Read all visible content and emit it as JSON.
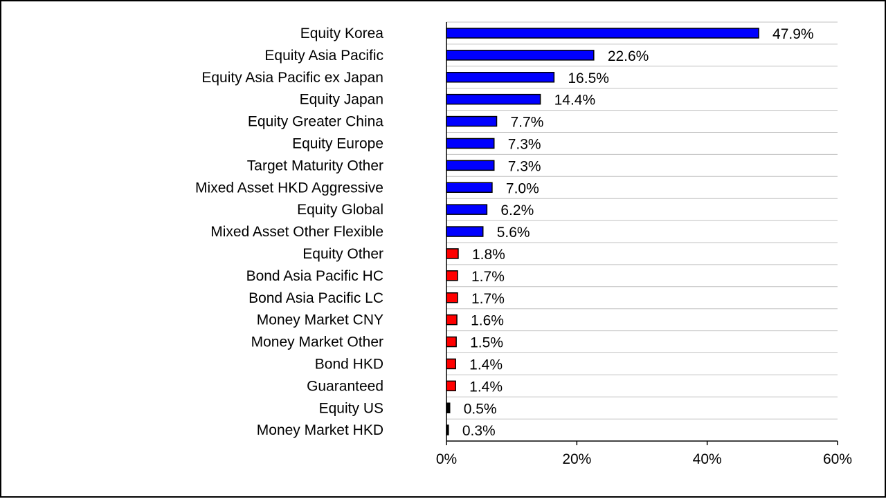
{
  "chart_data": {
    "type": "bar",
    "orientation": "horizontal",
    "categories": [
      "Equity Korea",
      "Equity Asia Pacific",
      "Equity Asia Pacific ex Japan",
      "Equity Japan",
      "Equity Greater China",
      "Equity Europe",
      "Target Maturity Other",
      "Mixed Asset HKD Aggressive",
      "Equity Global",
      "Mixed Asset Other Flexible",
      "Equity Other",
      "Bond Asia Pacific HC",
      "Bond Asia Pacific LC",
      "Money Market CNY",
      "Money Market Other",
      "Bond HKD",
      "Guaranteed",
      "Equity US",
      "Money Market HKD"
    ],
    "values": [
      47.9,
      22.6,
      16.5,
      14.4,
      7.7,
      7.3,
      7.3,
      7.0,
      6.2,
      5.6,
      1.8,
      1.7,
      1.7,
      1.6,
      1.5,
      1.4,
      1.4,
      0.5,
      0.3
    ],
    "value_labels": [
      "47.9%",
      "22.6%",
      "16.5%",
      "14.4%",
      "7.7%",
      "7.3%",
      "7.3%",
      "7.0%",
      "6.2%",
      "5.6%",
      "1.8%",
      "1.7%",
      "1.7%",
      "1.6%",
      "1.5%",
      "1.4%",
      "1.4%",
      "0.5%",
      "0.3%"
    ],
    "bar_colors": [
      "#0000ff",
      "#0000ff",
      "#0000ff",
      "#0000ff",
      "#0000ff",
      "#0000ff",
      "#0000ff",
      "#0000ff",
      "#0000ff",
      "#0000ff",
      "#ff0000",
      "#ff0000",
      "#ff0000",
      "#ff0000",
      "#ff0000",
      "#ff0000",
      "#ff0000",
      "#000000",
      "#000000"
    ],
    "xlim": [
      0,
      60
    ],
    "xticks": [
      0,
      20,
      40,
      60
    ],
    "xtick_labels": [
      "0%",
      "20%",
      "40%",
      "60%"
    ],
    "grid": "horizontal",
    "title": "",
    "xlabel": "",
    "ylabel": ""
  },
  "colors": {
    "grid": "#c0c0c0",
    "axis": "#000000",
    "bar_outline": "#000000"
  }
}
